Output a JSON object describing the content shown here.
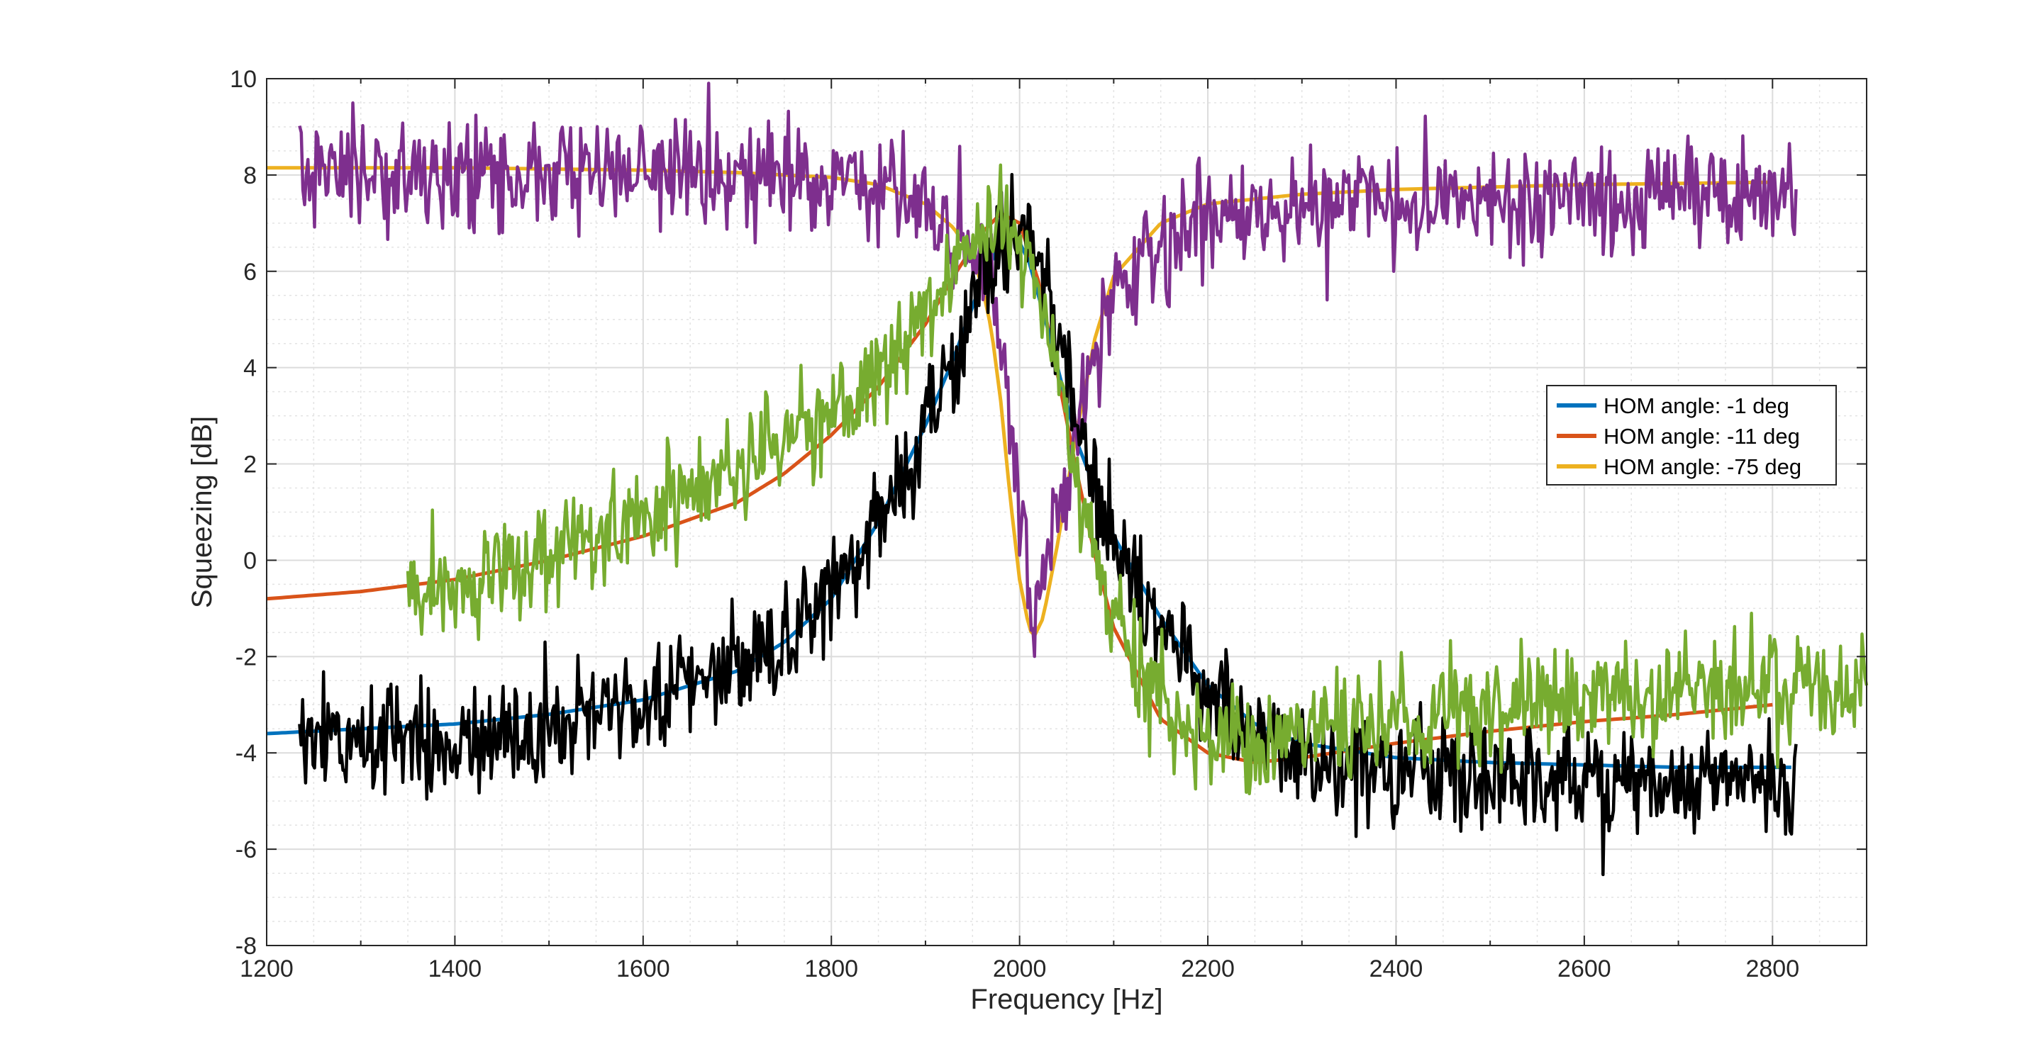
{
  "chart_data": {
    "type": "line",
    "xlabel": "Frequency [Hz]",
    "ylabel": "Squeezing [dB]",
    "xlim": [
      1200,
      2900
    ],
    "ylim": [
      -8,
      10
    ],
    "x_ticks": [
      1200,
      1400,
      1600,
      1800,
      2000,
      2200,
      2400,
      2600,
      2800
    ],
    "y_ticks": [
      -8,
      -6,
      -4,
      -2,
      0,
      2,
      4,
      6,
      8,
      10
    ],
    "x_tick_labels": [
      "1200",
      "1400",
      "1600",
      "1800",
      "2000",
      "2200",
      "2400",
      "2600",
      "2800"
    ],
    "y_tick_labels": [
      "-8",
      "-6",
      "-4",
      "-2",
      "0",
      "2",
      "4",
      "6",
      "8",
      "10"
    ],
    "grid": true,
    "minor_grid": true,
    "legend_position": "right",
    "series": [
      {
        "name": "HOM angle: -1 deg",
        "kind": "model",
        "color": "#0072BD",
        "x": [
          1200,
          1400,
          1500,
          1600,
          1700,
          1750,
          1800,
          1850,
          1900,
          1930,
          1960,
          1980,
          1995,
          2010,
          2030,
          2060,
          2100,
          2150,
          2200,
          2250,
          2300,
          2400,
          2500,
          2600,
          2700,
          2800,
          2820
        ],
        "y": [
          -3.6,
          -3.4,
          -3.2,
          -2.9,
          -2.3,
          -1.7,
          -0.8,
          0.8,
          2.8,
          4.2,
          5.8,
          6.6,
          6.8,
          6.2,
          4.8,
          2.5,
          0.5,
          -1.2,
          -2.6,
          -3.4,
          -3.8,
          -4.1,
          -4.2,
          -4.25,
          -4.3,
          -4.3,
          -4.3
        ]
      },
      {
        "name": "HOM angle: -11 deg",
        "kind": "model",
        "color": "#D95319",
        "x": [
          1200,
          1300,
          1400,
          1500,
          1600,
          1700,
          1750,
          1800,
          1850,
          1900,
          1930,
          1960,
          1980,
          2000,
          2020,
          2040,
          2060,
          2080,
          2100,
          2150,
          2200,
          2250,
          2300,
          2400,
          2500,
          2600,
          2700,
          2800
        ],
        "y": [
          -0.8,
          -0.65,
          -0.4,
          0.0,
          0.5,
          1.2,
          1.8,
          2.6,
          3.6,
          4.9,
          5.9,
          6.8,
          7.2,
          7.0,
          5.8,
          3.9,
          1.9,
          0.1,
          -1.4,
          -3.3,
          -4.0,
          -4.2,
          -4.1,
          -3.8,
          -3.55,
          -3.35,
          -3.2,
          -3.0
        ]
      },
      {
        "name": "HOM angle: -75 deg",
        "kind": "model",
        "color": "#EDB120",
        "x": [
          1200,
          1400,
          1600,
          1700,
          1800,
          1850,
          1900,
          1930,
          1950,
          1960,
          1970,
          1980,
          1990,
          2000,
          2010,
          2015,
          2025,
          2040,
          2060,
          2080,
          2100,
          2150,
          2200,
          2300,
          2400,
          2600,
          2800
        ],
        "y": [
          8.15,
          8.15,
          8.1,
          8.05,
          7.95,
          7.8,
          7.4,
          6.9,
          6.3,
          5.7,
          4.8,
          3.3,
          1.3,
          -0.4,
          -1.4,
          -1.6,
          -1.2,
          0.3,
          2.6,
          4.6,
          5.9,
          7.0,
          7.4,
          7.6,
          7.7,
          7.8,
          7.85
        ]
      },
      {
        "name": "",
        "kind": "measurement",
        "color": "#7E2F8E",
        "x": [
          1235,
          1400,
          1600,
          1800,
          1860,
          1900,
          1930,
          1950,
          1970,
          1990,
          2000,
          2010,
          2015,
          2025,
          2040,
          2060,
          2080,
          2100,
          2150,
          2200,
          2300,
          2400,
          2500,
          2600,
          2700,
          2800,
          2825
        ],
        "y": [
          8.0,
          8.0,
          8.0,
          7.9,
          7.7,
          7.3,
          6.8,
          6.2,
          5.6,
          3.2,
          1.2,
          -0.3,
          -0.9,
          -0.5,
          0.8,
          2.6,
          4.3,
          5.5,
          6.5,
          7.0,
          7.3,
          7.35,
          7.4,
          7.45,
          7.5,
          7.5,
          7.5
        ],
        "noise_amp": 0.55,
        "points": 900
      },
      {
        "name": "",
        "kind": "measurement",
        "color": "#000000",
        "x": [
          1235,
          1300,
          1400,
          1500,
          1600,
          1700,
          1750,
          1800,
          1850,
          1900,
          1930,
          1960,
          1980,
          2000,
          2020,
          2040,
          2060,
          2080,
          2100,
          2150,
          2200,
          2250,
          2300,
          2400,
          2500,
          2600,
          2700,
          2800,
          2825
        ],
        "y": [
          -3.6,
          -3.7,
          -3.7,
          -3.4,
          -2.9,
          -2.2,
          -1.6,
          -0.8,
          0.6,
          2.8,
          4.2,
          5.8,
          6.6,
          6.8,
          6.0,
          4.6,
          3.2,
          1.6,
          0.4,
          -1.5,
          -2.8,
          -3.6,
          -4.1,
          -4.4,
          -4.5,
          -4.55,
          -4.6,
          -4.6,
          -4.6
        ],
        "noise_amp": 0.55,
        "points": 1000
      },
      {
        "name": "",
        "kind": "measurement",
        "color": "#77AC30",
        "x": [
          1350,
          1400,
          1500,
          1600,
          1700,
          1750,
          1800,
          1850,
          1900,
          1930,
          1960,
          1980,
          2000,
          2020,
          2040,
          2060,
          2080,
          2100,
          2150,
          2200,
          2250,
          2300,
          2400,
          2500,
          2600,
          2700,
          2800,
          2900
        ],
        "y": [
          -0.7,
          -0.4,
          0.1,
          0.9,
          1.8,
          2.4,
          3.1,
          4.0,
          5.1,
          6.0,
          6.8,
          7.0,
          6.7,
          5.6,
          3.7,
          1.8,
          0.2,
          -1.3,
          -3.0,
          -3.6,
          -3.8,
          -3.6,
          -3.3,
          -3.1,
          -2.9,
          -2.8,
          -2.7,
          -2.6
        ],
        "noise_amp": 0.55,
        "points": 950
      }
    ],
    "legend": [
      {
        "label": "HOM angle: -1 deg",
        "color": "#0072BD"
      },
      {
        "label": "HOM angle: -11 deg",
        "color": "#D95319"
      },
      {
        "label": "HOM angle: -75 deg",
        "color": "#EDB120"
      }
    ]
  }
}
